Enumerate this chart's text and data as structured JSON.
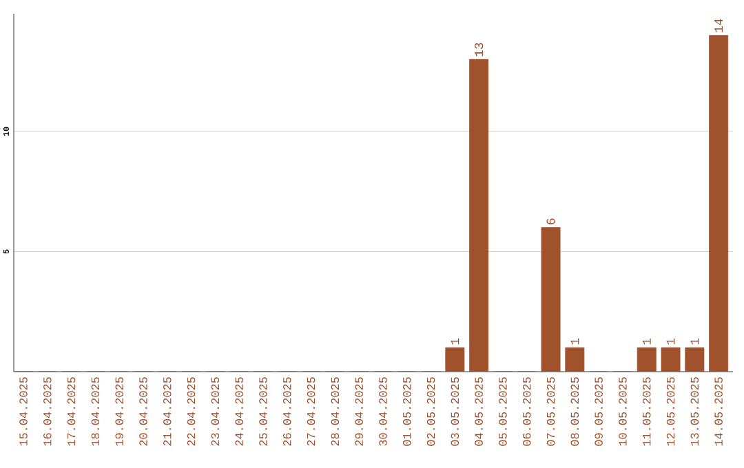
{
  "chart_data": {
    "type": "bar",
    "categories": [
      "15.04.2025",
      "16.04.2025",
      "17.04.2025",
      "18.04.2025",
      "19.04.2025",
      "20.04.2025",
      "21.04.2025",
      "22.04.2025",
      "23.04.2025",
      "24.04.2025",
      "25.04.2025",
      "26.04.2025",
      "27.04.2025",
      "28.04.2025",
      "29.04.2025",
      "30.04.2025",
      "01.05.2025",
      "02.05.2025",
      "03.05.2025",
      "04.05.2025",
      "05.05.2025",
      "06.05.2025",
      "07.05.2025",
      "08.05.2025",
      "09.05.2025",
      "10.05.2025",
      "11.05.2025",
      "12.05.2025",
      "13.05.2025",
      "14.05.2025"
    ],
    "values": [
      0,
      0,
      0,
      0,
      0,
      0,
      0,
      0,
      0,
      0,
      0,
      0,
      0,
      0,
      0,
      0,
      0,
      0,
      1,
      13,
      0,
      0,
      6,
      1,
      0,
      0,
      1,
      1,
      1,
      14
    ],
    "value_labels": [
      null,
      null,
      null,
      null,
      null,
      null,
      null,
      null,
      null,
      null,
      null,
      null,
      null,
      null,
      null,
      null,
      null,
      null,
      "1",
      "13",
      null,
      null,
      "6",
      "1",
      null,
      null,
      "1",
      "1",
      "1",
      "14"
    ],
    "color": "#a0522d",
    "ylim": [
      0,
      14.9
    ],
    "yticks": [
      5,
      10
    ],
    "grid": "y"
  }
}
